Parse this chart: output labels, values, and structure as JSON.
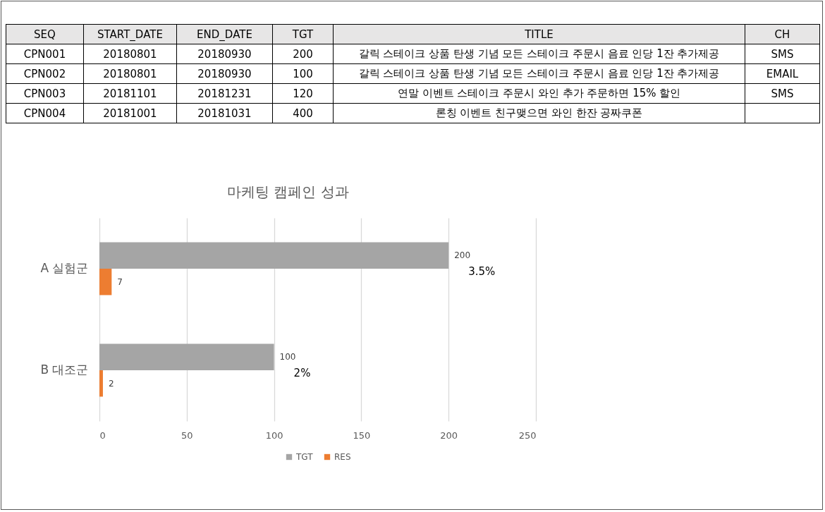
{
  "chart_data": [
    {
      "type": "other",
      "categories": [
        "SEQ",
        "START_DATE",
        "END_DATE",
        "TGT",
        "TITLE",
        "CH"
      ],
      "cell_labels": [
        [
          "CPN001",
          "20180801",
          "20180930",
          "200",
          "갈릭 스테이크 상품 탄생 기념 모든 스테이크 주문시 음료 인당 1잔 추가제공",
          "SMS"
        ],
        [
          "CPN002",
          "20180801",
          "20180930",
          "100",
          "갈릭 스테이크 상품 탄생 기념 모든 스테이크 주문시 음료 인당 1잔 추가제공",
          "EMAIL"
        ],
        [
          "CPN003",
          "20181101",
          "20181231",
          "120",
          "연말 이벤트 스테이크 주문시 와인 추가 주문하면 15% 할인",
          "SMS"
        ],
        [
          "CPN004",
          "20181001",
          "20181031",
          "400",
          "론칭 이벤트 친구맺으면 와인 한잔 공짜쿠폰",
          null
        ]
      ]
    },
    {
      "type": "bar",
      "orientation": "horizontal",
      "title": "마케팅 캠페인 성과",
      "categories": [
        "A 실험군",
        "B 대조군"
      ],
      "series": [
        {
          "name": "TGT",
          "color": "#a5a5a5",
          "values": [
            200,
            100
          ]
        },
        {
          "name": "RES",
          "color": "#ed7d31",
          "values": [
            7,
            2
          ]
        }
      ],
      "xlim": [
        0,
        250
      ],
      "xticks": [
        0,
        50,
        100,
        150,
        200,
        250
      ],
      "grid": "x",
      "legend": "bottom",
      "data_labels": true,
      "annotations": [
        {
          "text": "3.5%",
          "x": 200,
          "y": "A 실험군"
        },
        {
          "text": "2%",
          "x": 100,
          "y": "B 대조군"
        }
      ]
    }
  ]
}
